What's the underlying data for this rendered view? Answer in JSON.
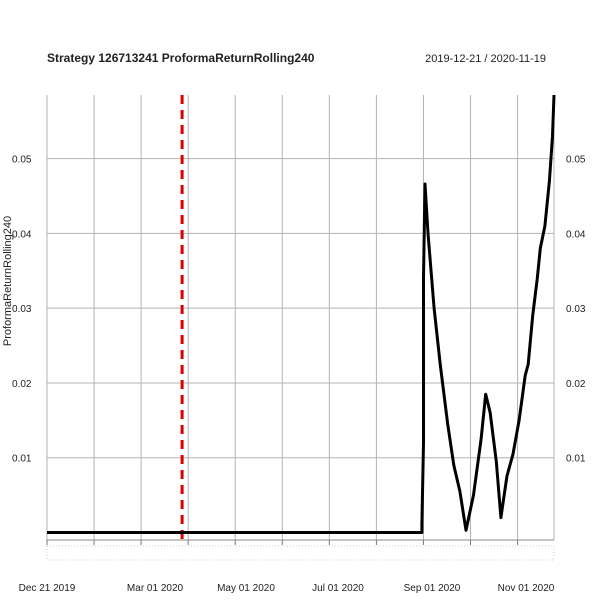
{
  "chart_data": {
    "type": "line",
    "title": "Strategy 126713241 ProformaReturnRolling240",
    "date_range": "2019-12-21 / 2020-11-19",
    "ylabel": "ProformaReturnRolling240",
    "xlabel": "",
    "x_tick_labels": [
      "Dec 21 2019",
      "Mar 01 2020",
      "May 01 2020",
      "Jul 01 2020",
      "Sep 01 2020",
      "Nov 01 2020"
    ],
    "y_tick_labels": [
      "0.01",
      "0.02",
      "0.03",
      "0.04",
      "0.05"
    ],
    "ylim": [
      -0.001,
      0.0585
    ],
    "xlim": [
      "2019-12-21",
      "2020-11-19"
    ],
    "grid": true,
    "event_line": {
      "date": "2020-03-19",
      "color": "#dd0000",
      "style": "dashed"
    },
    "series": [
      {
        "color": "#000000",
        "points": [
          [
            "2019-12-21",
            0.0
          ],
          [
            "2020-08-24",
            0.0
          ],
          [
            "2020-08-24",
            0.0012
          ],
          [
            "2020-08-25",
            0.012
          ],
          [
            "2020-08-25",
            0.034
          ],
          [
            "2020-08-26",
            0.0466
          ],
          [
            "2020-08-28",
            0.04
          ],
          [
            "2020-09-01",
            0.03
          ],
          [
            "2020-09-05",
            0.0225
          ],
          [
            "2020-09-10",
            0.0145
          ],
          [
            "2020-09-14",
            0.009
          ],
          [
            "2020-09-18",
            0.0055
          ],
          [
            "2020-09-22",
            0.0003
          ],
          [
            "2020-09-27",
            0.005
          ],
          [
            "2020-10-02",
            0.0125
          ],
          [
            "2020-10-05",
            0.0185
          ],
          [
            "2020-10-08",
            0.016
          ],
          [
            "2020-10-12",
            0.0095
          ],
          [
            "2020-10-15",
            0.002
          ],
          [
            "2020-10-19",
            0.0075
          ],
          [
            "2020-10-23",
            0.0105
          ],
          [
            "2020-10-27",
            0.015
          ],
          [
            "2020-10-31",
            0.021
          ],
          [
            "2020-11-02",
            0.0225
          ],
          [
            "2020-11-05",
            0.029
          ],
          [
            "2020-11-08",
            0.034
          ],
          [
            "2020-11-10",
            0.038
          ],
          [
            "2020-11-13",
            0.041
          ],
          [
            "2020-11-16",
            0.047
          ],
          [
            "2020-11-18",
            0.053
          ],
          [
            "2020-11-19",
            0.0585
          ]
        ]
      }
    ]
  }
}
